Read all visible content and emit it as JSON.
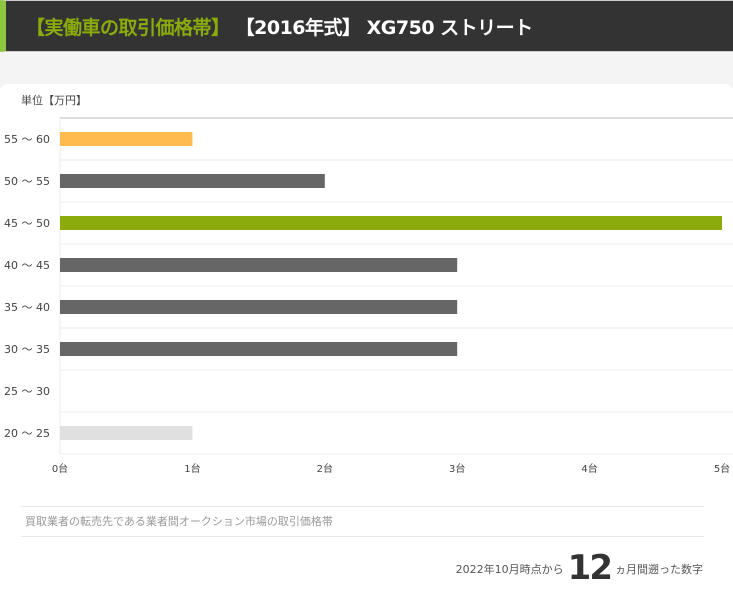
{
  "header": {
    "label": "【実働車の取引価格帯】",
    "title": "【2016年式】 XG750 ストリート"
  },
  "unit_label": "単位【万円】",
  "chart_data": {
    "type": "bar",
    "orientation": "horizontal",
    "categories": [
      "55 ～ 60",
      "50 ～ 55",
      "45 ～ 50",
      "40 ～ 45",
      "35 ～ 40",
      "30 ～ 35",
      "25 ～ 30",
      "20 ～ 25"
    ],
    "values": [
      1,
      2,
      5,
      3,
      3,
      3,
      0,
      1
    ],
    "colors": [
      "#ffbb4d",
      "#666666",
      "#8aab0b",
      "#666666",
      "#666666",
      "#666666",
      "#666666",
      "#e0e0e0"
    ],
    "x_ticks": [
      "0台",
      "1台",
      "2台",
      "3台",
      "4台",
      "5台"
    ],
    "xlim": [
      0,
      5
    ],
    "ylabel": "単位【万円】",
    "grid": true
  },
  "footer": {
    "note": "買取業者の転売先である業者間オークション市場の取引価格帯",
    "period_prefix": "2022年10月時点から",
    "period_months": "12",
    "period_suffix": "ヵ月間遡った数字"
  }
}
